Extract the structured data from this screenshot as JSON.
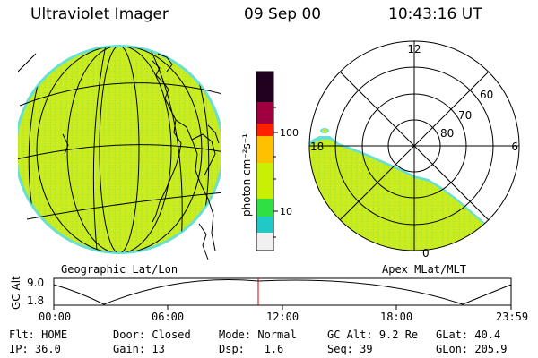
{
  "header": {
    "instrument": "Ultraviolet Imager",
    "date": "09 Sep 00",
    "time": "10:43:16 UT"
  },
  "left_panel": {
    "caption": "Geographic Lat/Lon"
  },
  "right_panel": {
    "caption": "Apex MLat/MLT",
    "mlt_labels": [
      "12",
      "18",
      "6",
      "0"
    ],
    "mlat_labels": [
      "60",
      "70",
      "80"
    ]
  },
  "colorbar": {
    "unit": "photon cm⁻²s⁻¹",
    "ticks": [
      "100",
      "10"
    ],
    "colors": [
      "#f0f0f0",
      "#20c8c8",
      "#30e040",
      "#c8f000",
      "#ffc000",
      "#ff2000",
      "#a00040",
      "#200020"
    ]
  },
  "altitude_strip": {
    "axis_label": "GC Alt",
    "y_max": "9.0",
    "y_min": "1.8",
    "time_ticks": [
      "00:00",
      "06:00",
      "12:00",
      "18:00",
      "23:59"
    ],
    "current_time_marker": "10:43",
    "marker_color": "#cc0000"
  },
  "status": {
    "row1": [
      {
        "label": "Flt:",
        "value": "HOME"
      },
      {
        "label": "Door:",
        "value": "Closed"
      },
      {
        "label": "Mode:",
        "value": "Normal"
      },
      {
        "label": "GC Alt:",
        "value": "9.2 Re"
      },
      {
        "label": "GLat:",
        "value": "40.4"
      }
    ],
    "row2": [
      {
        "label": "IP:",
        "value": "36.0"
      },
      {
        "label": "Gain:",
        "value": "13"
      },
      {
        "label": "Dsp:",
        "value": "1.6"
      },
      {
        "label": "Seq:",
        "value": "39"
      },
      {
        "label": "GLon:",
        "value": "205.9"
      }
    ]
  }
}
